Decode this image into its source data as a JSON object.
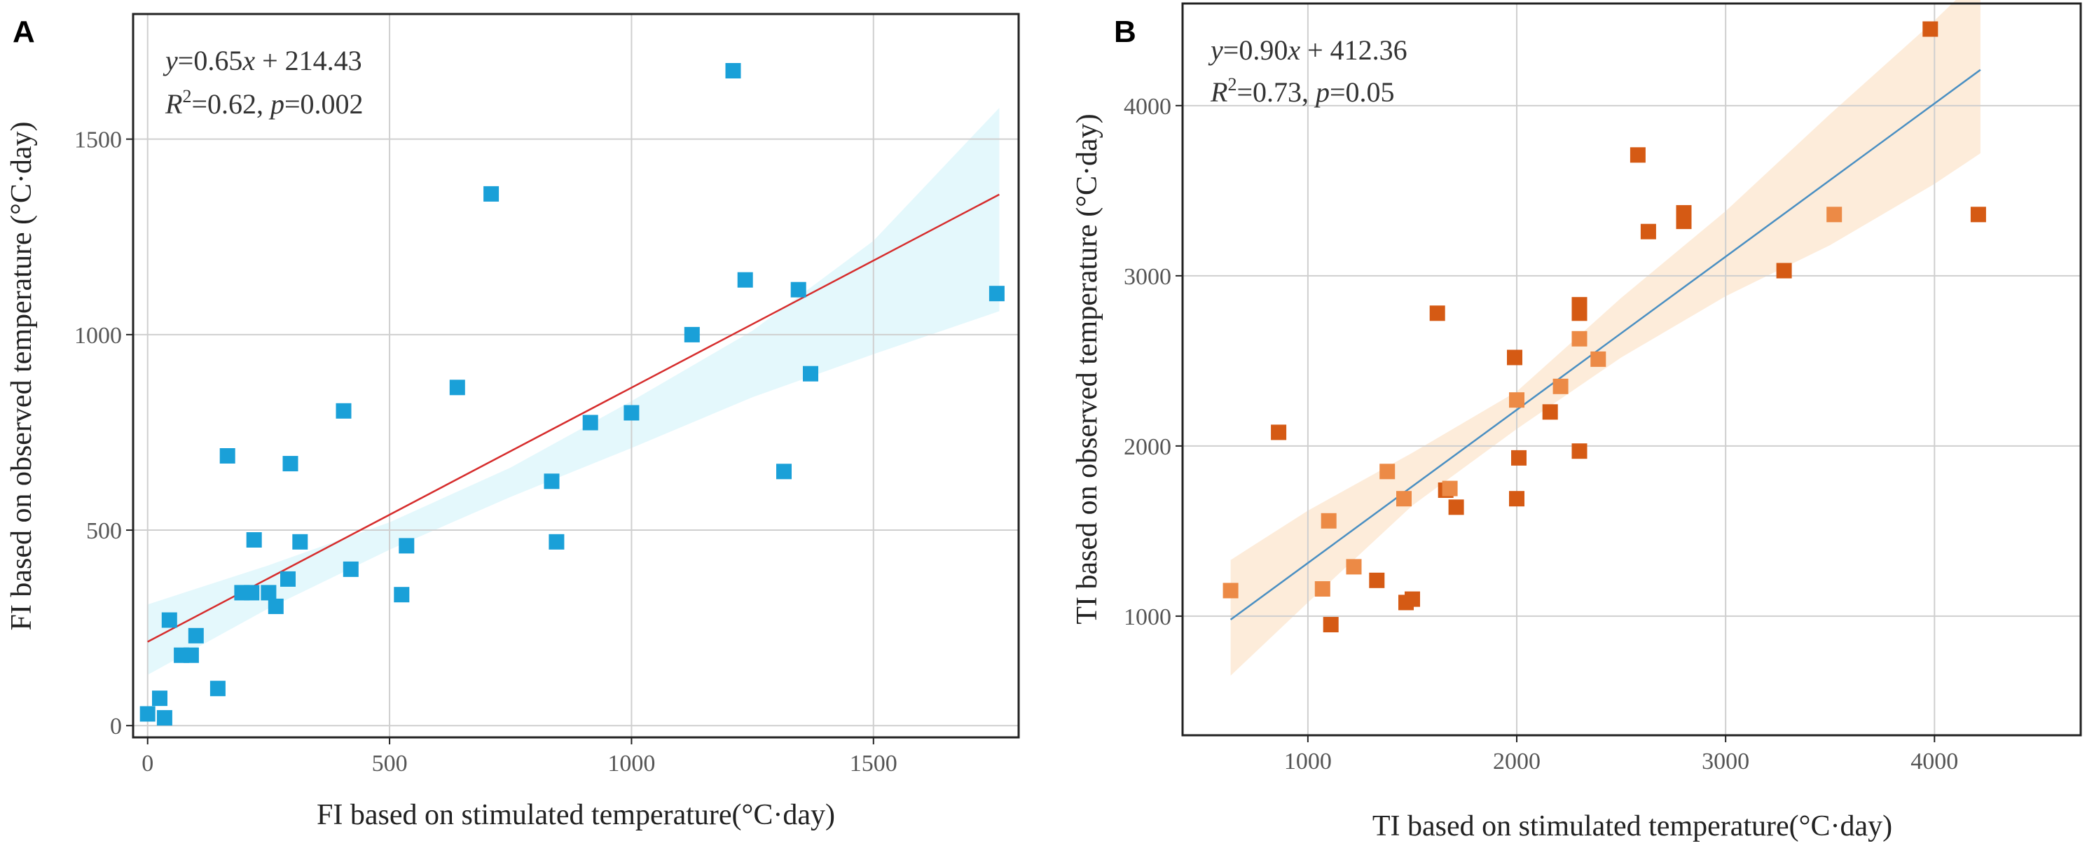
{
  "chart_data": [
    {
      "type": "scatter",
      "panel_label": "A",
      "xlabel": "FI based on stimulated temperature(°C·day)",
      "ylabel": "FI based on observed temperature (°C·day)",
      "xlim": [
        -30,
        1800
      ],
      "ylim": [
        -30,
        1820
      ],
      "xticks": [
        0,
        500,
        1000,
        1500
      ],
      "yticks": [
        0,
        500,
        1000,
        1500
      ],
      "grid": true,
      "point_color": "#1aa0d8",
      "line_color": "#d62c2c",
      "band_color": "#dff7fb",
      "fit": {
        "slope": 0.65,
        "intercept": 214.43,
        "x_range": [
          0,
          1760
        ]
      },
      "band": {
        "x": [
          0,
          250,
          500,
          750,
          1000,
          1250,
          1500,
          1760
        ],
        "lower": [
          130,
          300,
          450,
          585,
          710,
          840,
          950,
          1060
        ],
        "upper": [
          310,
          410,
          520,
          660,
          830,
          1010,
          1240,
          1580
        ]
      },
      "equation_line1": {
        "v1": "y",
        "t1": "=0.65",
        "v2": "x",
        "t2": " + 214.43"
      },
      "equation_line2": {
        "v1": "R",
        "sup": "2",
        "t1": "=0.62, ",
        "v2": "p",
        "t2": "=0.002"
      },
      "points": [
        [
          0,
          30
        ],
        [
          25,
          70
        ],
        [
          35,
          20
        ],
        [
          45,
          270
        ],
        [
          70,
          180
        ],
        [
          90,
          180
        ],
        [
          100,
          230
        ],
        [
          145,
          95
        ],
        [
          165,
          690
        ],
        [
          195,
          340
        ],
        [
          215,
          340
        ],
        [
          220,
          475
        ],
        [
          250,
          340
        ],
        [
          265,
          305
        ],
        [
          290,
          375
        ],
        [
          295,
          670
        ],
        [
          315,
          470
        ],
        [
          405,
          805
        ],
        [
          420,
          400
        ],
        [
          525,
          335
        ],
        [
          535,
          460
        ],
        [
          640,
          865
        ],
        [
          710,
          1360
        ],
        [
          835,
          625
        ],
        [
          845,
          470
        ],
        [
          915,
          775
        ],
        [
          1000,
          800
        ],
        [
          1125,
          1000
        ],
        [
          1210,
          1675
        ],
        [
          1235,
          1140
        ],
        [
          1315,
          650
        ],
        [
          1345,
          1115
        ],
        [
          1370,
          900
        ],
        [
          1755,
          1105
        ]
      ]
    },
    {
      "type": "scatter",
      "panel_label": "B",
      "xlabel": "TI based on stimulated temperature(°C·day)",
      "ylabel": "TI based on observed temperature (°C·day)",
      "xlim": [
        400,
        4700
      ],
      "ylim": [
        300,
        4600
      ],
      "xticks": [
        1000,
        2000,
        3000,
        4000
      ],
      "yticks": [
        1000,
        2000,
        3000,
        4000
      ],
      "grid": true,
      "point_colors": [
        "#d55a14",
        "#ec8a46"
      ],
      "line_color": "#4a8fc2",
      "band_color": "#fde9d4",
      "fit": {
        "slope": 0.9,
        "intercept": 412.36,
        "x_range": [
          630,
          4220
        ]
      },
      "band": {
        "x": [
          630,
          1000,
          1500,
          2000,
          2500,
          3000,
          3500,
          4000,
          4220
        ],
        "lower": [
          650,
          1080,
          1650,
          2100,
          2520,
          2880,
          3180,
          3540,
          3720
        ],
        "upper": [
          1330,
          1620,
          1960,
          2320,
          2870,
          3380,
          3950,
          4500,
          4760
        ]
      },
      "equation_line1": {
        "v1": "y",
        "t1": "=0.90",
        "v2": "x",
        "t2": " + 412.36"
      },
      "equation_line2": {
        "v1": "R",
        "sup": "2",
        "t1": "=0.73, ",
        "v2": "p",
        "t2": "=0.05"
      },
      "points": [
        [
          630,
          1150,
          1
        ],
        [
          860,
          2080,
          0
        ],
        [
          1070,
          1160,
          1
        ],
        [
          1100,
          1560,
          1
        ],
        [
          1110,
          950,
          0
        ],
        [
          1220,
          1290,
          1
        ],
        [
          1330,
          1210,
          0
        ],
        [
          1380,
          1850,
          1
        ],
        [
          1460,
          1690,
          1
        ],
        [
          1470,
          1080,
          0
        ],
        [
          1500,
          1100,
          0
        ],
        [
          1620,
          2780,
          0
        ],
        [
          1660,
          1740,
          0
        ],
        [
          1680,
          1750,
          1
        ],
        [
          1710,
          1640,
          0
        ],
        [
          1990,
          2520,
          0
        ],
        [
          2000,
          1690,
          0
        ],
        [
          2000,
          2270,
          1
        ],
        [
          2010,
          1930,
          0
        ],
        [
          2160,
          2200,
          0
        ],
        [
          2210,
          2350,
          1
        ],
        [
          2300,
          1970,
          0
        ],
        [
          2300,
          2630,
          1
        ],
        [
          2300,
          2780,
          0
        ],
        [
          2300,
          2830,
          0
        ],
        [
          2390,
          2510,
          1
        ],
        [
          2580,
          3710,
          0
        ],
        [
          2630,
          3260,
          0
        ],
        [
          2800,
          3320,
          0
        ],
        [
          2800,
          3370,
          0
        ],
        [
          3280,
          3030,
          0
        ],
        [
          3520,
          3360,
          1
        ],
        [
          3980,
          4450,
          0
        ],
        [
          4210,
          3360,
          0
        ]
      ]
    }
  ]
}
